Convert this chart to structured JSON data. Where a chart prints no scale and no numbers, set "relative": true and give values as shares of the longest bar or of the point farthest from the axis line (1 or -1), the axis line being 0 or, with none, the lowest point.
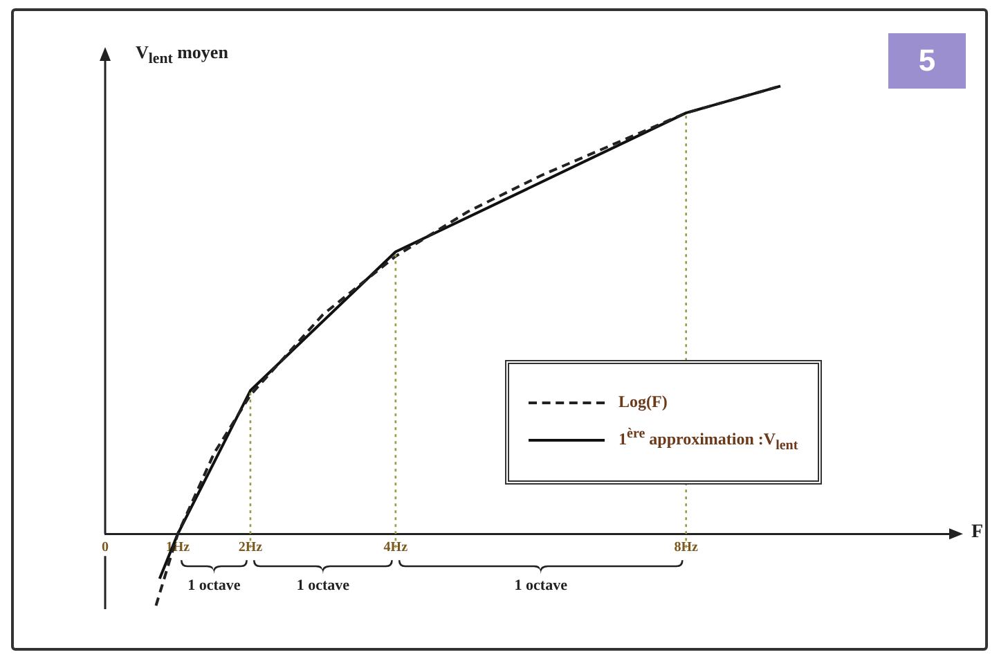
{
  "chart_data": {
    "type": "line",
    "title": "5",
    "ylabel": "V$_{lent}$ moyen",
    "xlabel": "F",
    "relative": true,
    "xlim": [
      0,
      11.7
    ],
    "xticks": [
      {
        "value": 0,
        "label": "0"
      },
      {
        "value": 1,
        "label": "1Hz"
      },
      {
        "value": 2,
        "label": "2Hz"
      },
      {
        "value": 4,
        "label": "4Hz"
      },
      {
        "value": 8,
        "label": "8Hz"
      }
    ],
    "series": [
      {
        "name": "Log(F)",
        "color": "#222222",
        "line_style": "dashed",
        "x": [
          0.7,
          1,
          1.5,
          2,
          3,
          4,
          5,
          6,
          7,
          8,
          9.3
        ],
        "values": [
          -0.16,
          0,
          0.18,
          0.31,
          0.49,
          0.62,
          0.72,
          0.8,
          0.87,
          0.94,
          1.0
        ]
      },
      {
        "name": "1$^{ère}$ approximation :V$_{lent}$",
        "color": "#111111",
        "line_style": "solid",
        "x": [
          0.75,
          1,
          2,
          4,
          8,
          9.3
        ],
        "values": [
          -0.1,
          0,
          0.32,
          0.63,
          0.94,
          1.0
        ]
      }
    ],
    "ref_lines": [
      {
        "axis": "x",
        "value": 2,
        "color": "#9a9a40",
        "line_style": "dotted"
      },
      {
        "axis": "x",
        "value": 4,
        "color": "#9a9a40",
        "line_style": "dotted"
      },
      {
        "axis": "x",
        "value": 8,
        "color": "#9a9a40",
        "line_style": "dotted"
      }
    ],
    "annotations": [
      "1 octave",
      "1 octave",
      "1 octave"
    ],
    "legend": "right",
    "grid": false,
    "marker": "none"
  }
}
